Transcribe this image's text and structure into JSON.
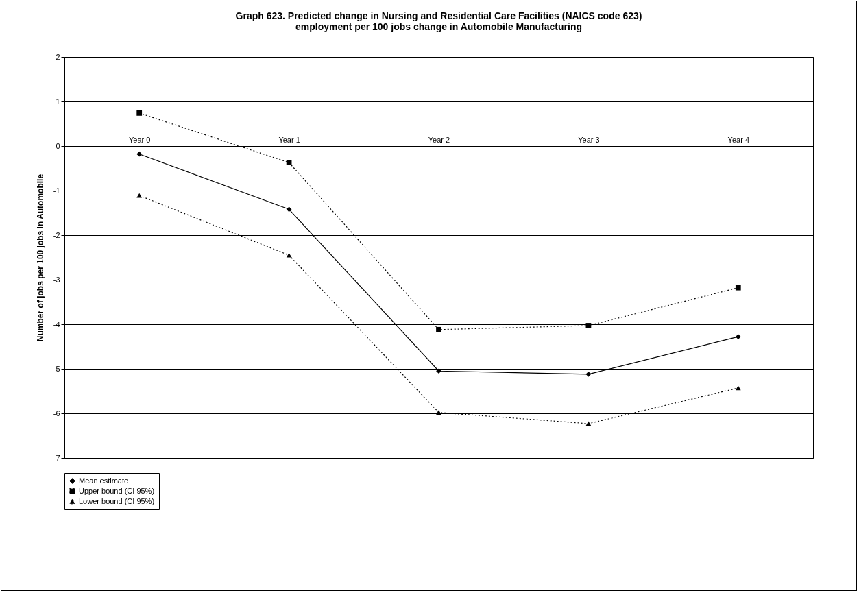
{
  "chart_data": {
    "type": "line",
    "title": "Graph 623.  Predicted change in Nursing and Residential Care Facilities (NAICS code 623)\nemployment per 100 jobs change in Automobile Manufacturing",
    "ylabel": "Number of jobs per 100 jobs in Automobile",
    "categories": [
      "Year 0",
      "Year 1",
      "Year 2",
      "Year 3",
      "Year 4"
    ],
    "series": [
      {
        "name": "Mean estimate",
        "color": "#000000",
        "marker": "diamond",
        "line_style": "solid",
        "values": [
          -0.18,
          -1.42,
          -5.05,
          -5.12,
          -4.28
        ]
      },
      {
        "name": "Upper bound (CI 95%)",
        "color": "#000000",
        "marker": "square",
        "line_style": "dotted",
        "values": [
          0.74,
          -0.37,
          -4.12,
          -4.03,
          -3.18
        ]
      },
      {
        "name": "Lower bound (CI 95%)",
        "color": "#000000",
        "marker": "triangle",
        "line_style": "dotted",
        "values": [
          -1.11,
          -2.45,
          -5.98,
          -6.23,
          -5.43
        ]
      }
    ],
    "ylim": [
      -7,
      2
    ],
    "yticks": [
      -7,
      -6,
      -5,
      -4,
      -3,
      -2,
      -1,
      0,
      1,
      2
    ],
    "grid": "y",
    "legend": "bottom"
  }
}
